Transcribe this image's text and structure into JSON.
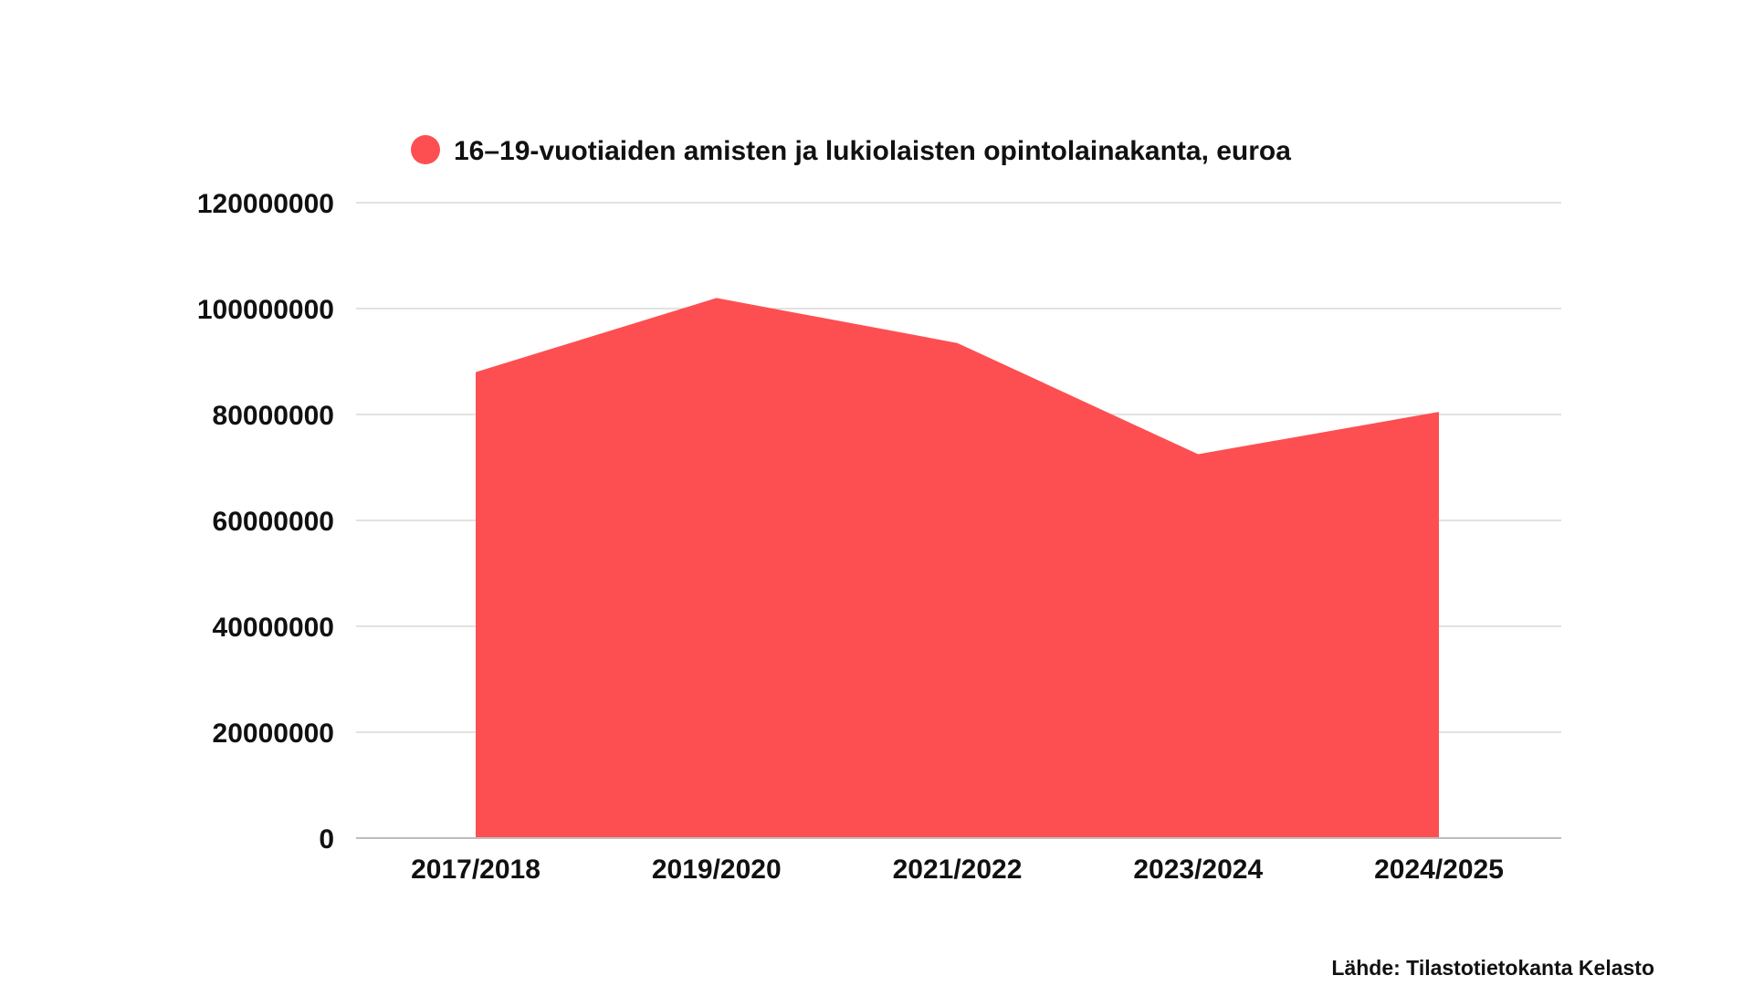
{
  "chart_data": {
    "type": "area",
    "categories": [
      "2017/2018",
      "2019/2020",
      "2021/2022",
      "2023/2024",
      "2024/2025"
    ],
    "series": [
      {
        "name": "16–19-vuotiaiden amisten ja lukiolaisten opintolainakanta, euroa",
        "values": [
          88000000,
          102000000,
          93500000,
          72500000,
          80500000
        ],
        "color": "#fd4f51"
      }
    ],
    "ylim": [
      0,
      120000000
    ],
    "yticks": [
      "0",
      "20000000",
      "40000000",
      "60000000",
      "80000000",
      "100000000",
      "120000000"
    ],
    "ytick_values": [
      0,
      20000000,
      40000000,
      60000000,
      80000000,
      100000000,
      120000000
    ],
    "grid": true,
    "legend_position": "top"
  },
  "source": "Lähde: Tilastotietokanta Kelasto"
}
